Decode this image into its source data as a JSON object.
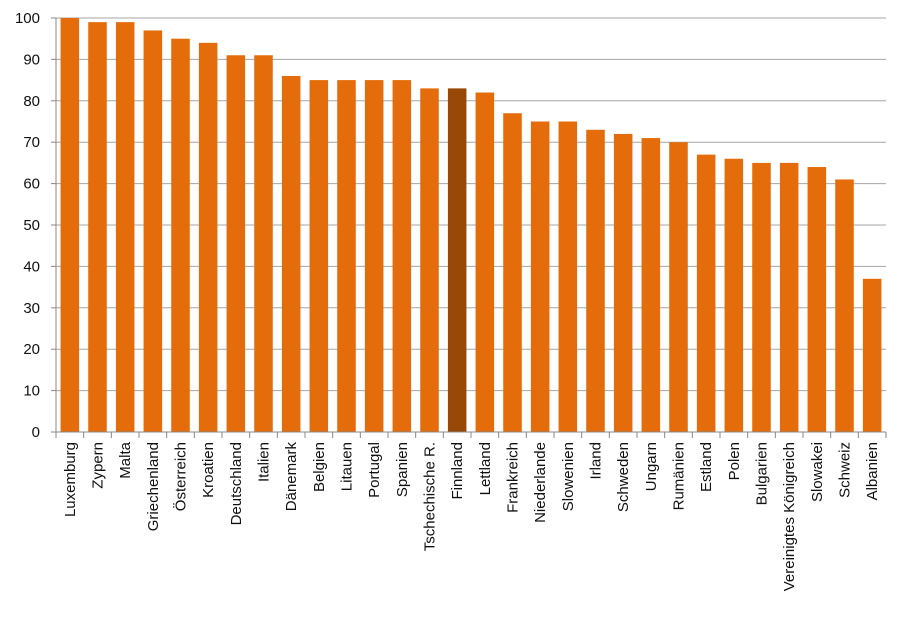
{
  "chart_data": {
    "type": "bar",
    "title": "",
    "xlabel": "",
    "ylabel": "",
    "ylim": [
      0,
      100
    ],
    "yticks": [
      0,
      10,
      20,
      30,
      40,
      50,
      60,
      70,
      80,
      90,
      100
    ],
    "grid": true,
    "legend": "none",
    "categories": [
      "Luxemburg",
      "Zypern",
      "Malta",
      "Griechenland",
      "Österreich",
      "Kroatien",
      "Deutschland",
      "Italien",
      "Dänemark",
      "Belgien",
      "Litauen",
      "Portugal",
      "Spanien",
      "Tschechische R.",
      "Finnland",
      "Lettland",
      "Frankreich",
      "Niederlande",
      "Slowenien",
      "Irland",
      "Schweden",
      "Ungarn",
      "Rumänien",
      "Estland",
      "Polen",
      "Bulgarien",
      "Vereinigtes Königreich",
      "Slowakei",
      "Schweiz",
      "Albanien"
    ],
    "values": [
      100,
      99,
      99,
      97,
      95,
      94,
      91,
      91,
      86,
      85,
      85,
      85,
      85,
      83,
      83,
      82,
      77,
      75,
      75,
      73,
      72,
      71,
      70,
      67,
      66,
      65,
      65,
      64,
      61,
      37
    ],
    "highlight_category": "Finnland",
    "colors": {
      "bar": "#E46C0A",
      "highlight": "#984807",
      "grid": "#A6A6A6",
      "axis": "#888888"
    }
  }
}
